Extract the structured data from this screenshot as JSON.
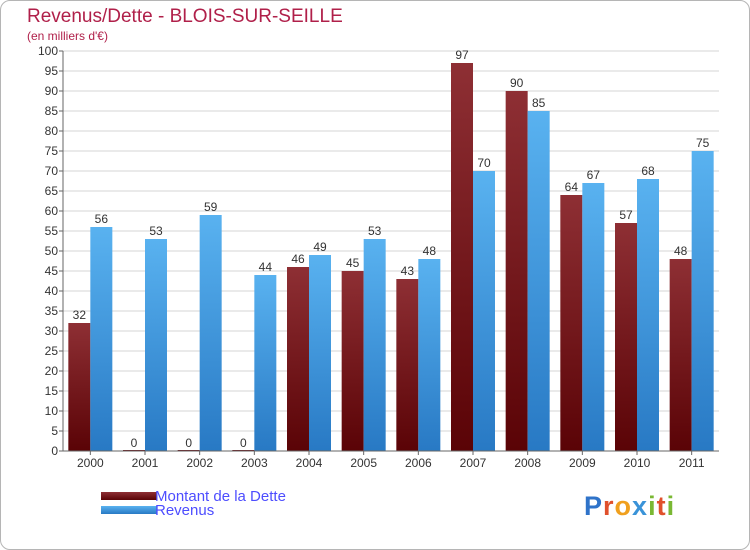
{
  "title": "Revenus/Dette - BLOIS-SUR-SEILLE",
  "subtitle": "(en milliers d'€)",
  "legend": [
    {
      "label": "Montant de la Dette",
      "color": "#6b0f14"
    },
    {
      "label": "Revenus",
      "color": "#4ea3e6"
    }
  ],
  "logo": {
    "letters": [
      "P",
      "r",
      "o",
      "x",
      "i",
      "t",
      "i"
    ],
    "colors": [
      "#2f73c9",
      "#e0502c",
      "#f0a01e",
      "#3a93d8",
      "#7ab833",
      "#e0502c",
      "#7ab833"
    ]
  },
  "chart_data": {
    "type": "bar",
    "title": "Revenus/Dette - BLOIS-SUR-SEILLE",
    "ylabel": "(en milliers d'€)",
    "xlabel": "",
    "ylim": [
      0,
      100
    ],
    "yticks": [
      0,
      5,
      10,
      15,
      20,
      25,
      30,
      35,
      40,
      45,
      50,
      55,
      60,
      65,
      70,
      75,
      80,
      85,
      90,
      95,
      100
    ],
    "categories": [
      "2000",
      "2001",
      "2002",
      "2003",
      "2004",
      "2005",
      "2006",
      "2007",
      "2008",
      "2009",
      "2010",
      "2011"
    ],
    "series": [
      {
        "name": "Montant de la Dette",
        "color": "#6b0f14",
        "values": [
          32,
          0,
          0,
          0,
          46,
          45,
          43,
          97,
          90,
          64,
          57,
          48
        ]
      },
      {
        "name": "Revenus",
        "color": "#4ea3e6",
        "values": [
          56,
          53,
          59,
          44,
          49,
          53,
          48,
          70,
          85,
          67,
          68,
          75
        ]
      }
    ]
  }
}
